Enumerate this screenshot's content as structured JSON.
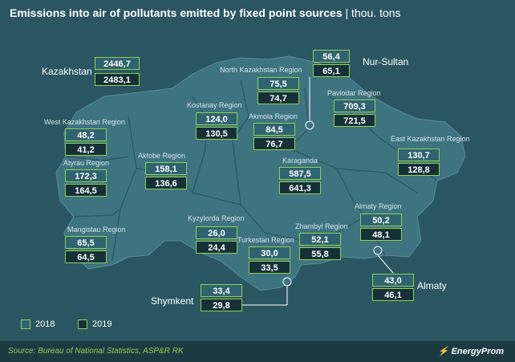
{
  "title": {
    "main": "Emissions into air of pollutants emitted by fixed point sources",
    "unit": "| thou. tons"
  },
  "legend": {
    "y2018": "2018",
    "y2019": "2019"
  },
  "national": {
    "name": "Kazakhstan",
    "v2018": "2446,7",
    "v2019": "2483,1"
  },
  "regions": {
    "north_kazakhstan": {
      "name": "North Kazakhstan Region",
      "v2018": "75,5",
      "v2019": "74,7"
    },
    "nur_sultan": {
      "name": "Nur-Sultan",
      "v2018": "56,4",
      "v2019": "65,1"
    },
    "pavlodar": {
      "name": "Pavlodar Region",
      "v2018": "709,3",
      "v2019": "721,5"
    },
    "kostanay": {
      "name": "Kostanay Region",
      "v2018": "124,0",
      "v2019": "130,5"
    },
    "akmola": {
      "name": "Akmola Region",
      "v2018": "84,5",
      "v2019": "76,7"
    },
    "west_kazakhstan": {
      "name": "West Kazakhstan Region",
      "v2018": "48,2",
      "v2019": "41,2"
    },
    "east_kazakhstan": {
      "name": "East Kazakhstan Region",
      "v2018": "130,7",
      "v2019": "128,8"
    },
    "atyrau": {
      "name": "Atyrau Region",
      "v2018": "172,3",
      "v2019": "164,5"
    },
    "aktobe": {
      "name": "Aktobe Region",
      "v2018": "158,1",
      "v2019": "136,6"
    },
    "karaganda": {
      "name": "Karaganda",
      "v2018": "587,5",
      "v2019": "641,3"
    },
    "almaty_region": {
      "name": "Almaty Region",
      "v2018": "50,2",
      "v2019": "48,1"
    },
    "kyzylorda": {
      "name": "Kyzylorda Region",
      "v2018": "26,0",
      "v2019": "24,4"
    },
    "zhambyl": {
      "name": "Zhambyl Region",
      "v2018": "52,1",
      "v2019": "55,8"
    },
    "mangistau": {
      "name": "Mangistau Region",
      "v2018": "65,5",
      "v2019": "64,5"
    },
    "turkestan": {
      "name": "Turkestan Region",
      "v2018": "30,0",
      "v2019": "33,5"
    },
    "shymkent": {
      "name": "Shymkent",
      "v2018": "33,4",
      "v2019": "29,8"
    },
    "almaty_city": {
      "name": "Almaty",
      "v2018": "43,0",
      "v2019": "46,1"
    }
  },
  "footer": {
    "source": "Source: Bureau of National Statistics, ASP&R RK",
    "brand": "EnergyProm"
  },
  "colors": {
    "background": "#2a5662",
    "map_fill": "#3e7380",
    "border": "#8fd14f",
    "box_2018": "#2f6370",
    "box_2019": "#163038",
    "source_text": "#8fd14f"
  }
}
